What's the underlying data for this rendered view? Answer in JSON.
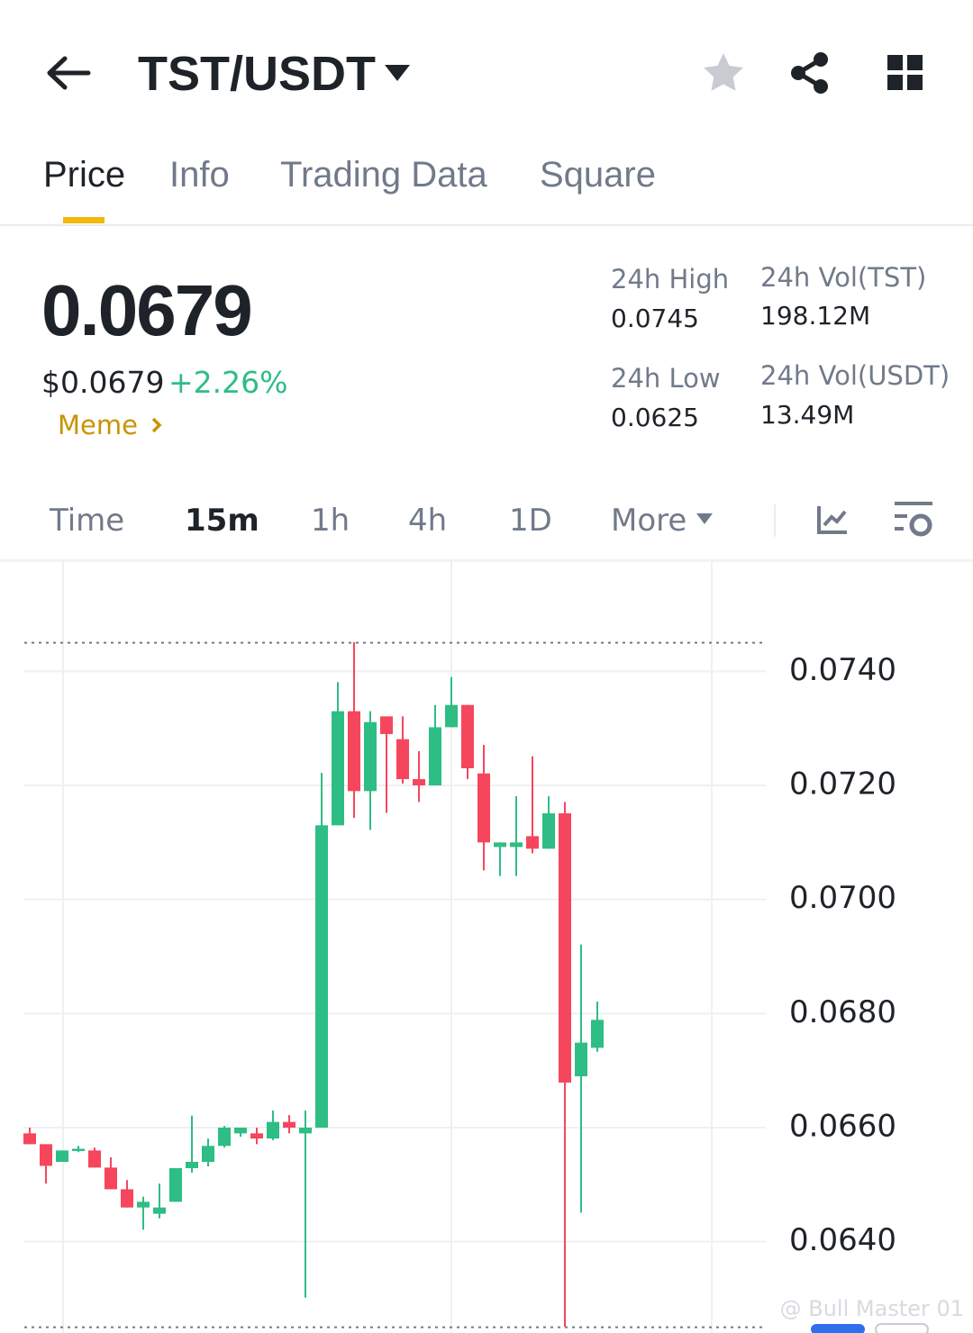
{
  "header": {
    "pair": "TST/USDT"
  },
  "tabs": [
    "Price",
    "Info",
    "Trading Data",
    "Square"
  ],
  "active_tab": 0,
  "price": {
    "last": "0.0679",
    "usd": "$0.0679",
    "change": "+2.26%",
    "tag": "Meme"
  },
  "stats": {
    "high": {
      "label": "24h High",
      "value": 0.0745
    },
    "low": {
      "label": "24h Low",
      "value": 0.0625
    },
    "vol_tst": {
      "label": "24h Vol(TST)",
      "value": "198.12M"
    },
    "vol_usdt": {
      "label": "24h Vol(USDT)",
      "value": "13.49M"
    }
  },
  "timeframes": [
    "Time",
    "15m",
    "1h",
    "4h",
    "1D",
    "More"
  ],
  "active_timeframe": 1,
  "chart_data": {
    "type": "candlestick",
    "up_color": "#2ebd85",
    "down_color": "#f6465d",
    "ylim": [
      0.0624,
      0.0759
    ],
    "yticks": [
      {
        "value": 0.074,
        "label": "0.0740"
      },
      {
        "value": 0.072,
        "label": "0.0720"
      },
      {
        "value": 0.07,
        "label": "0.0700"
      },
      {
        "value": 0.068,
        "label": "0.0680"
      },
      {
        "value": 0.066,
        "label": "0.0660"
      },
      {
        "value": 0.064,
        "label": "0.0640"
      }
    ],
    "grid": true,
    "open": [
      0.0659,
      0.06571,
      0.0654,
      0.06559,
      0.0656,
      0.0653,
      0.06492,
      0.0646,
      0.06449,
      0.0647,
      0.06529,
      0.0654,
      0.06568,
      0.0659,
      0.0659,
      0.06581,
      0.0661,
      0.0659,
      0.066,
      0.0713,
      0.0733,
      0.0719,
      0.07321,
      0.07281,
      0.07211,
      0.072,
      0.07302,
      0.07341,
      0.07221,
      0.07092,
      0.07092,
      0.07111,
      0.07089,
      0.07151,
      0.0669,
      0.0674
    ],
    "high": [
      0.066,
      0.06571,
      0.0656,
      0.06568,
      0.06565,
      0.06548,
      0.06508,
      0.06479,
      0.06502,
      0.06529,
      0.06621,
      0.06581,
      0.06603,
      0.066,
      0.066,
      0.0663,
      0.06622,
      0.0663,
      0.07222,
      0.07381,
      0.07451,
      0.0733,
      0.07321,
      0.07321,
      0.0726,
      0.07341,
      0.0739,
      0.07341,
      0.07271,
      0.071,
      0.07181,
      0.07251,
      0.07181,
      0.07171,
      0.06921,
      0.06821
    ],
    "low": [
      0.06571,
      0.06502,
      0.0654,
      0.06557,
      0.0653,
      0.06492,
      0.0646,
      0.06421,
      0.06441,
      0.0647,
      0.06521,
      0.06532,
      0.06565,
      0.06584,
      0.06571,
      0.06578,
      0.0659,
      0.06302,
      0.066,
      0.0713,
      0.07143,
      0.07122,
      0.07152,
      0.07203,
      0.07171,
      0.072,
      0.07302,
      0.07211,
      0.07051,
      0.07041,
      0.07041,
      0.07081,
      0.07089,
      0.06251,
      0.06451,
      0.06733
    ],
    "close": [
      0.06571,
      0.06533,
      0.0656,
      0.06563,
      0.0653,
      0.06492,
      0.0646,
      0.0647,
      0.0646,
      0.06529,
      0.0654,
      0.06568,
      0.066,
      0.066,
      0.06581,
      0.0661,
      0.066,
      0.066,
      0.0713,
      0.0733,
      0.0719,
      0.07311,
      0.0729,
      0.07211,
      0.072,
      0.07302,
      0.07341,
      0.0723,
      0.071,
      0.071,
      0.071,
      0.07089,
      0.07151,
      0.06679,
      0.06749,
      0.06789
    ]
  },
  "watermark": "@ Bull Master 01"
}
